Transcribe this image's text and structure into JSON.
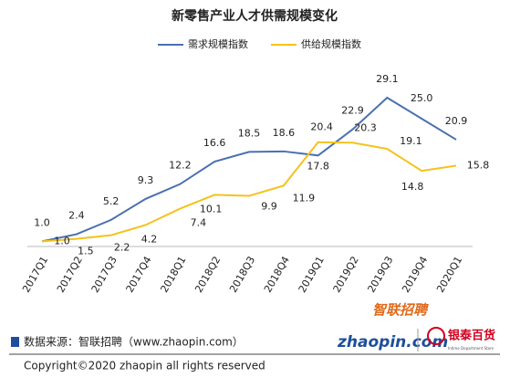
{
  "chart_data": {
    "type": "line",
    "title": "新零售产业人才供需规模变化",
    "categories": [
      "2017Q1",
      "2017Q2",
      "2017Q3",
      "2017Q4",
      "2018Q1",
      "2018Q2",
      "2018Q3",
      "2018Q4",
      "2019Q1",
      "2019Q2",
      "2019Q3",
      "2019Q4",
      "2020Q1"
    ],
    "series": [
      {
        "name": "需求规模指数",
        "color": "#4a70b0",
        "values": [
          1.0,
          2.4,
          5.2,
          9.3,
          12.2,
          16.6,
          18.5,
          18.6,
          17.8,
          22.9,
          29.1,
          25.0,
          20.9
        ],
        "value_labels": [
          "1.0",
          "2.4",
          "5.2",
          "9.3",
          "12.2",
          "16.6",
          "18.5",
          "18.6",
          "17.8",
          "22.9",
          "29.1",
          "25.0",
          "20.9"
        ]
      },
      {
        "name": "供给规模指数",
        "color": "#f5c21b",
        "values": [
          1.0,
          1.5,
          2.2,
          4.2,
          7.4,
          10.1,
          9.9,
          11.9,
          20.4,
          20.3,
          19.1,
          14.8,
          15.8
        ],
        "value_labels": [
          "1.0",
          "1.5",
          "2.2",
          "4.2",
          "7.4",
          "10.1",
          "9.9",
          "11.9",
          "20.4",
          "20.3",
          "19.1",
          "14.8",
          "15.8"
        ]
      }
    ]
  },
  "source": "数据来源：智联招聘（www.zhaopin.com）",
  "logo_zhaopin": {
    "brand": "智联招聘",
    "site": "zhaopin.com"
  },
  "logo_intime": {
    "brand": "银泰百货",
    "sub": "Intime Department Store"
  },
  "copyright": "Copyright©2020 zhaopin all rights reserved"
}
